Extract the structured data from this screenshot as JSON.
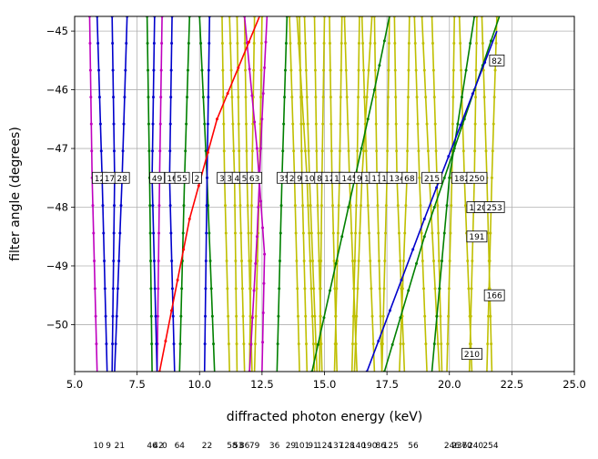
{
  "chart_data": {
    "type": "line",
    "title": "",
    "xlabel": "diffracted photon energy (keV)",
    "ylabel": "filter angle (degrees)",
    "xlim": [
      5.0,
      25.0
    ],
    "ylim": [
      -50.8,
      -44.75
    ],
    "xticks": [
      "5.0",
      "7.5",
      "10.0",
      "12.5",
      "15.0",
      "17.5",
      "20.0",
      "22.5",
      "25.0"
    ],
    "yticks": [
      "−45",
      "−46",
      "−47",
      "−48",
      "−49",
      "−50"
    ],
    "grid": true,
    "colors": {
      "red": "#ff0000",
      "blue": "#0000cc",
      "green": "#008000",
      "magenta": "#bf00bf",
      "yellow": "#bfbf00"
    },
    "series": [
      {
        "color": "red",
        "points": [
          [
            8.4,
            -50.8
          ],
          [
            9.6,
            -48.2
          ],
          [
            10.7,
            -46.5
          ],
          [
            12.4,
            -44.75
          ]
        ]
      },
      {
        "color": "blue",
        "points": [
          [
            5.9,
            -44.75
          ],
          [
            6.1,
            -47.5
          ],
          [
            6.3,
            -50.8
          ]
        ]
      },
      {
        "color": "blue",
        "points": [
          [
            6.5,
            -44.75
          ],
          [
            6.6,
            -47.5
          ],
          [
            6.5,
            -50.8
          ]
        ]
      },
      {
        "color": "blue",
        "points": [
          [
            7.1,
            -44.75
          ],
          [
            6.9,
            -47.5
          ],
          [
            6.6,
            -50.8
          ]
        ]
      },
      {
        "color": "blue",
        "points": [
          [
            8.2,
            -44.75
          ],
          [
            8.1,
            -47.5
          ],
          [
            8.3,
            -50.8
          ]
        ]
      },
      {
        "color": "blue",
        "points": [
          [
            8.9,
            -44.75
          ],
          [
            8.8,
            -47.5
          ],
          [
            9.0,
            -50.8
          ]
        ]
      },
      {
        "color": "blue",
        "points": [
          [
            10.4,
            -44.75
          ],
          [
            10.3,
            -47.5
          ],
          [
            10.2,
            -50.8
          ]
        ]
      },
      {
        "color": "blue",
        "points": [
          [
            16.7,
            -50.8
          ],
          [
            19.0,
            -48.2
          ],
          [
            21.9,
            -45.0
          ]
        ]
      },
      {
        "color": "green",
        "points": [
          [
            7.9,
            -44.75
          ],
          [
            8.0,
            -47.5
          ],
          [
            8.1,
            -50.8
          ]
        ]
      },
      {
        "color": "green",
        "points": [
          [
            9.6,
            -44.75
          ],
          [
            9.4,
            -47.5
          ],
          [
            9.2,
            -50.8
          ]
        ]
      },
      {
        "color": "green",
        "points": [
          [
            10.0,
            -44.75
          ],
          [
            10.3,
            -47.5
          ],
          [
            10.6,
            -50.8
          ]
        ]
      },
      {
        "color": "green",
        "points": [
          [
            13.5,
            -44.75
          ],
          [
            13.3,
            -47.5
          ],
          [
            13.1,
            -50.8
          ]
        ]
      },
      {
        "color": "green",
        "points": [
          [
            14.5,
            -50.8
          ],
          [
            15.7,
            -48.5
          ],
          [
            17.0,
            -46.0
          ],
          [
            17.6,
            -44.75
          ]
        ]
      },
      {
        "color": "green",
        "points": [
          [
            17.4,
            -50.8
          ],
          [
            19.0,
            -48.5
          ],
          [
            21.0,
            -46.0
          ],
          [
            22.0,
            -44.75
          ]
        ]
      },
      {
        "color": "green",
        "points": [
          [
            21.0,
            -44.75
          ],
          [
            20.0,
            -47.5
          ],
          [
            19.3,
            -50.8
          ]
        ]
      },
      {
        "color": "magenta",
        "points": [
          [
            5.6,
            -44.75
          ],
          [
            5.7,
            -47.5
          ],
          [
            5.9,
            -50.8
          ]
        ]
      },
      {
        "color": "magenta",
        "points": [
          [
            8.5,
            -44.75
          ],
          [
            8.4,
            -47.5
          ],
          [
            8.3,
            -50.8
          ]
        ]
      },
      {
        "color": "magenta",
        "points": [
          [
            11.8,
            -44.75
          ],
          [
            12.3,
            -47.0
          ],
          [
            12.6,
            -48.8
          ],
          [
            12.5,
            -50.8
          ]
        ]
      },
      {
        "color": "magenta",
        "points": [
          [
            12.0,
            -50.8
          ],
          [
            12.3,
            -48.5
          ],
          [
            12.5,
            -46.5
          ],
          [
            12.7,
            -44.75
          ]
        ]
      },
      {
        "color": "yellow",
        "points": [
          [
            10.9,
            -44.75
          ],
          [
            11.0,
            -47.5
          ],
          [
            11.2,
            -50.8
          ]
        ]
      },
      {
        "color": "yellow",
        "points": [
          [
            11.2,
            -44.75
          ],
          [
            11.4,
            -47.5
          ],
          [
            11.5,
            -50.8
          ]
        ]
      },
      {
        "color": "yellow",
        "points": [
          [
            11.5,
            -44.75
          ],
          [
            11.6,
            -47.5
          ],
          [
            11.8,
            -50.8
          ]
        ]
      },
      {
        "color": "yellow",
        "points": [
          [
            11.8,
            -44.75
          ],
          [
            11.9,
            -47.5
          ],
          [
            12.1,
            -50.8
          ]
        ]
      },
      {
        "color": "yellow",
        "points": [
          [
            12.2,
            -44.75
          ],
          [
            12.1,
            -47.5
          ],
          [
            12.0,
            -50.8
          ]
        ]
      },
      {
        "color": "yellow",
        "points": [
          [
            12.5,
            -44.75
          ],
          [
            12.4,
            -47.5
          ],
          [
            12.2,
            -50.8
          ]
        ]
      },
      {
        "color": "yellow",
        "points": [
          [
            13.6,
            -44.75
          ],
          [
            13.8,
            -47.5
          ],
          [
            14.0,
            -50.8
          ]
        ]
      },
      {
        "color": "yellow",
        "points": [
          [
            14.0,
            -44.75
          ],
          [
            14.1,
            -47.5
          ],
          [
            14.3,
            -50.8
          ]
        ]
      },
      {
        "color": "yellow",
        "points": [
          [
            14.2,
            -44.75
          ],
          [
            14.4,
            -47.5
          ],
          [
            14.7,
            -50.8
          ]
        ]
      },
      {
        "color": "yellow",
        "points": [
          [
            14.6,
            -44.75
          ],
          [
            14.7,
            -47.5
          ],
          [
            14.9,
            -50.8
          ]
        ]
      },
      {
        "color": "yellow",
        "points": [
          [
            15.0,
            -44.75
          ],
          [
            14.9,
            -47.5
          ],
          [
            14.8,
            -50.8
          ]
        ]
      },
      {
        "color": "yellow",
        "points": [
          [
            15.2,
            -44.75
          ],
          [
            15.3,
            -47.5
          ],
          [
            15.5,
            -50.8
          ]
        ]
      },
      {
        "color": "yellow",
        "points": [
          [
            15.7,
            -44.75
          ],
          [
            15.6,
            -47.5
          ],
          [
            15.4,
            -50.8
          ]
        ]
      },
      {
        "color": "yellow",
        "points": [
          [
            15.8,
            -44.75
          ],
          [
            16.0,
            -47.5
          ],
          [
            16.3,
            -50.8
          ]
        ]
      },
      {
        "color": "yellow",
        "points": [
          [
            16.4,
            -44.75
          ],
          [
            16.3,
            -47.5
          ],
          [
            16.1,
            -50.8
          ]
        ]
      },
      {
        "color": "yellow",
        "points": [
          [
            16.5,
            -44.75
          ],
          [
            16.7,
            -47.5
          ],
          [
            17.0,
            -50.8
          ]
        ]
      },
      {
        "color": "yellow",
        "points": [
          [
            17.0,
            -44.75
          ],
          [
            17.1,
            -47.5
          ],
          [
            17.3,
            -50.8
          ]
        ]
      },
      {
        "color": "yellow",
        "points": [
          [
            17.6,
            -44.75
          ],
          [
            17.5,
            -47.5
          ],
          [
            17.3,
            -50.8
          ]
        ]
      },
      {
        "color": "yellow",
        "points": [
          [
            17.8,
            -44.75
          ],
          [
            17.9,
            -47.5
          ],
          [
            18.2,
            -50.8
          ]
        ]
      },
      {
        "color": "yellow",
        "points": [
          [
            18.4,
            -44.75
          ],
          [
            18.3,
            -47.5
          ],
          [
            18.0,
            -50.8
          ]
        ]
      },
      {
        "color": "yellow",
        "points": [
          [
            18.6,
            -44.75
          ],
          [
            18.8,
            -47.5
          ],
          [
            19.1,
            -50.8
          ]
        ]
      },
      {
        "color": "yellow",
        "points": [
          [
            19.3,
            -44.75
          ],
          [
            19.5,
            -47.5
          ],
          [
            19.7,
            -50.8
          ]
        ]
      },
      {
        "color": "yellow",
        "points": [
          [
            20.2,
            -44.75
          ],
          [
            20.1,
            -47.5
          ],
          [
            19.9,
            -50.8
          ]
        ]
      },
      {
        "color": "yellow",
        "points": [
          [
            20.4,
            -44.75
          ],
          [
            20.6,
            -47.5
          ],
          [
            20.9,
            -50.8
          ]
        ]
      },
      {
        "color": "yellow",
        "points": [
          [
            21.1,
            -44.75
          ],
          [
            21.0,
            -47.5
          ],
          [
            20.8,
            -50.8
          ]
        ]
      },
      {
        "color": "yellow",
        "points": [
          [
            21.3,
            -44.75
          ],
          [
            21.5,
            -47.5
          ],
          [
            21.7,
            -50.8
          ]
        ]
      },
      {
        "color": "yellow",
        "points": [
          [
            21.9,
            -44.75
          ],
          [
            21.7,
            -47.5
          ],
          [
            21.5,
            -50.8
          ]
        ]
      },
      {
        "color": "yellow",
        "points": [
          [
            13.9,
            -44.75
          ],
          [
            14.3,
            -47.5
          ],
          [
            14.6,
            -50.8
          ]
        ]
      },
      {
        "color": "yellow",
        "points": [
          [
            16.9,
            -44.75
          ],
          [
            16.5,
            -47.5
          ],
          [
            16.2,
            -50.8
          ]
        ]
      },
      {
        "color": "yellow",
        "points": [
          [
            18.9,
            -44.75
          ],
          [
            19.2,
            -47.5
          ],
          [
            19.6,
            -50.8
          ]
        ]
      }
    ],
    "point_labels": [
      {
        "text": "12",
        "x": 6.0,
        "y": -47.5
      },
      {
        "text": "17",
        "x": 6.4,
        "y": -47.5
      },
      {
        "text": "28",
        "x": 6.9,
        "y": -47.5
      },
      {
        "text": "49",
        "x": 8.3,
        "y": -47.5
      },
      {
        "text": "16",
        "x": 8.9,
        "y": -47.5
      },
      {
        "text": "55",
        "x": 9.3,
        "y": -47.5
      },
      {
        "text": "2",
        "x": 9.9,
        "y": -47.5
      },
      {
        "text": "31",
        "x": 11.0,
        "y": -47.5
      },
      {
        "text": "38",
        "x": 11.3,
        "y": -47.5
      },
      {
        "text": "44",
        "x": 11.6,
        "y": -47.5
      },
      {
        "text": "51",
        "x": 11.9,
        "y": -47.5
      },
      {
        "text": "63",
        "x": 12.2,
        "y": -47.5
      },
      {
        "text": "35",
        "x": 13.4,
        "y": -47.5
      },
      {
        "text": "23",
        "x": 13.8,
        "y": -47.5
      },
      {
        "text": "96",
        "x": 14.1,
        "y": -47.5
      },
      {
        "text": "107",
        "x": 14.5,
        "y": -47.5
      },
      {
        "text": "84",
        "x": 14.9,
        "y": -47.5
      },
      {
        "text": "123",
        "x": 15.3,
        "y": -47.5
      },
      {
        "text": "138",
        "x": 15.7,
        "y": -47.5
      },
      {
        "text": "145",
        "x": 16.0,
        "y": -47.5
      },
      {
        "text": "92",
        "x": 16.5,
        "y": -47.5
      },
      {
        "text": "158",
        "x": 16.9,
        "y": -47.5
      },
      {
        "text": "172",
        "x": 17.2,
        "y": -47.5
      },
      {
        "text": "117",
        "x": 17.6,
        "y": -47.5
      },
      {
        "text": "134",
        "x": 17.9,
        "y": -47.5
      },
      {
        "text": "68",
        "x": 18.4,
        "y": -47.5
      },
      {
        "text": "215",
        "x": 19.3,
        "y": -47.5
      },
      {
        "text": "182",
        "x": 20.5,
        "y": -47.5
      },
      {
        "text": "250",
        "x": 21.1,
        "y": -47.5
      },
      {
        "text": "82",
        "x": 21.9,
        "y": -45.5
      },
      {
        "text": "187",
        "x": 21.1,
        "y": -48.0
      },
      {
        "text": "204",
        "x": 21.4,
        "y": -48.0
      },
      {
        "text": "253",
        "x": 21.8,
        "y": -48.0
      },
      {
        "text": "191",
        "x": 21.1,
        "y": -48.5
      },
      {
        "text": "166",
        "x": 21.8,
        "y": -49.5
      },
      {
        "text": "210",
        "x": 20.9,
        "y": -50.5
      }
    ],
    "bottom_labels": [
      {
        "text": "10",
        "x": 5.95
      },
      {
        "text": "9",
        "x": 6.35
      },
      {
        "text": "21",
        "x": 6.8
      },
      {
        "text": "46",
        "x": 8.1
      },
      {
        "text": "42",
        "x": 8.35
      },
      {
        "text": "0",
        "x": 8.6
      },
      {
        "text": "64",
        "x": 9.2
      },
      {
        "text": "22",
        "x": 10.3
      },
      {
        "text": "58",
        "x": 11.3
      },
      {
        "text": "53",
        "x": 11.55
      },
      {
        "text": "86",
        "x": 11.8
      },
      {
        "text": "79",
        "x": 12.2
      },
      {
        "text": "36",
        "x": 13.0
      },
      {
        "text": "29",
        "x": 13.65
      },
      {
        "text": "101",
        "x": 14.1
      },
      {
        "text": "91",
        "x": 14.55
      },
      {
        "text": "124",
        "x": 15.0
      },
      {
        "text": "137",
        "x": 15.45
      },
      {
        "text": "128",
        "x": 15.9
      },
      {
        "text": "140",
        "x": 16.35
      },
      {
        "text": "190",
        "x": 16.8
      },
      {
        "text": "86",
        "x": 17.25
      },
      {
        "text": "125",
        "x": 17.65
      },
      {
        "text": "56",
        "x": 18.55
      },
      {
        "text": "246",
        "x": 20.1
      },
      {
        "text": "236",
        "x": 20.4
      },
      {
        "text": "70",
        "x": 20.7
      },
      {
        "text": "240",
        "x": 21.05
      },
      {
        "text": "254",
        "x": 21.65
      }
    ]
  }
}
